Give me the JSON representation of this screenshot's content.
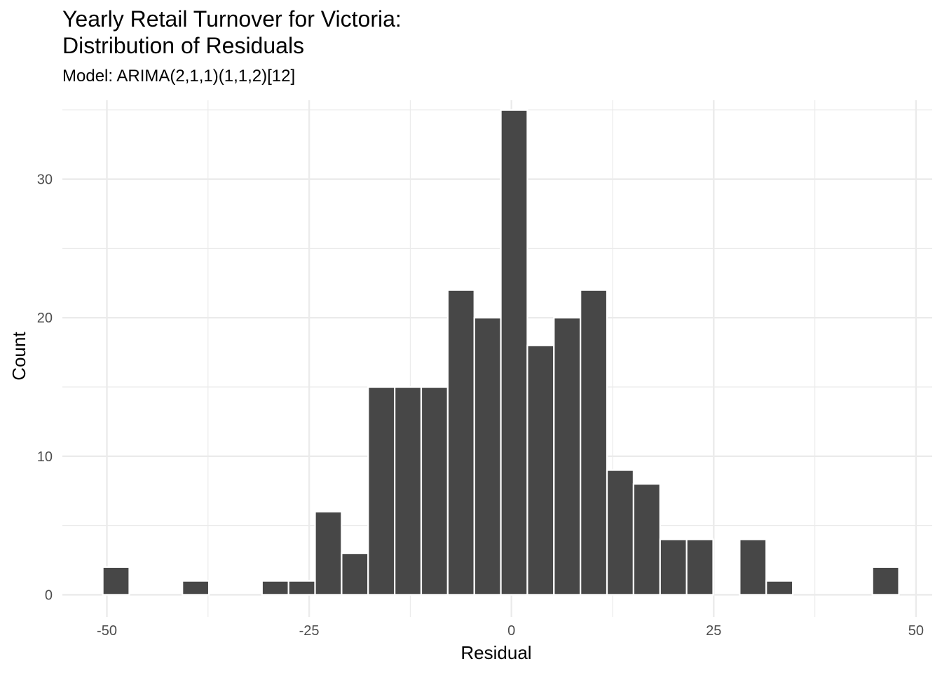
{
  "chart_data": {
    "type": "bar",
    "subtype": "histogram",
    "title_lines": [
      "Yearly Retail Turnover for Victoria:",
      "Distribution of Residuals"
    ],
    "subtitle": "Model: ARIMA(2,1,1)(1,1,2)[12]",
    "xlabel": "Residual",
    "ylabel": "Count",
    "xlim": [
      -55.5,
      52
    ],
    "ylim": [
      -1.6,
      35.7
    ],
    "x_ticks": [
      -50,
      -25,
      0,
      25,
      50
    ],
    "y_ticks": [
      0,
      10,
      20,
      30
    ],
    "x_tick_labels": [
      "-50",
      "-25",
      "0",
      "25",
      "50"
    ],
    "y_tick_labels": [
      "0",
      "10",
      "20",
      "30"
    ],
    "bin_width": 3.28,
    "bin_centers": [
      -48.87,
      -45.59,
      -42.31,
      -39.03,
      -35.75,
      -32.47,
      -29.19,
      -25.91,
      -22.63,
      -19.35,
      -16.07,
      -12.79,
      -9.51,
      -6.23,
      -2.95,
      0.33,
      3.61,
      6.89,
      10.17,
      13.45,
      16.73,
      20.01,
      23.29,
      26.57,
      29.85,
      33.13,
      36.41,
      39.69,
      42.97,
      46.25
    ],
    "counts": [
      2,
      0,
      0,
      1,
      0,
      0,
      1,
      1,
      6,
      3,
      15,
      15,
      15,
      22,
      20,
      35,
      18,
      20,
      22,
      9,
      8,
      4,
      4,
      0,
      4,
      1,
      0,
      0,
      0,
      2
    ],
    "bar_color": "#474747",
    "bar_border_color": "#ffffff",
    "grid": true,
    "grid_color": "#ebebeb",
    "legend": "none"
  }
}
